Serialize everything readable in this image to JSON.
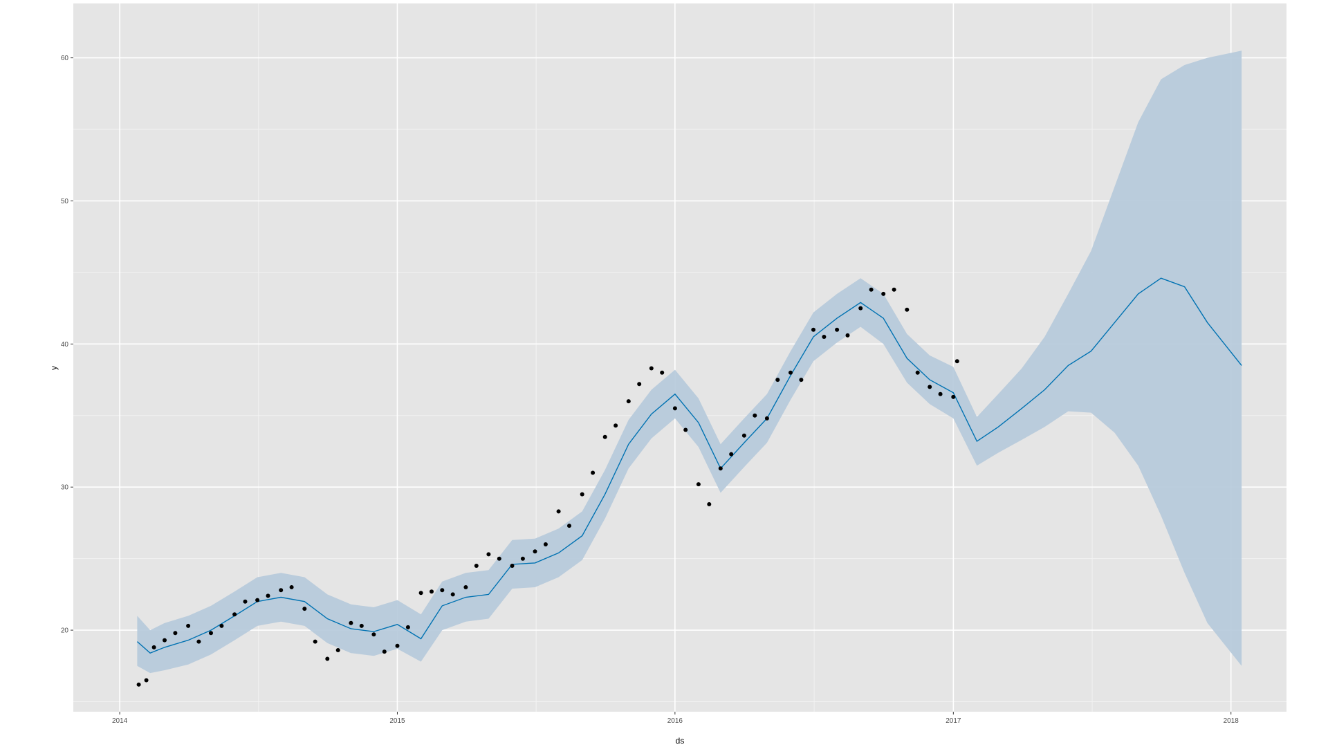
{
  "chart_data": {
    "type": "line",
    "title": "",
    "xlabel": "ds",
    "ylabel": "y",
    "x_is_date": true,
    "xlim": [
      "2013-11-01",
      "2018-03-15"
    ],
    "ylim": [
      14.3,
      63.8
    ],
    "x_ticks": [
      {
        "value": "2014-01-01",
        "label": "2014"
      },
      {
        "value": "2015-01-01",
        "label": "2015"
      },
      {
        "value": "2016-01-01",
        "label": "2016"
      },
      {
        "value": "2017-01-01",
        "label": "2017"
      },
      {
        "value": "2018-01-01",
        "label": "2018"
      }
    ],
    "y_ticks": [
      20,
      30,
      40,
      50,
      60
    ],
    "grid": true,
    "legend": "none",
    "colors": {
      "panel_background": "#e5e5e5",
      "grid_major": "#ffffff",
      "grid_minor": "#f2f2f2",
      "forecast_line": "#0072b2",
      "uncertainty_band": "#b5c9da",
      "points": "#000000"
    },
    "series": [
      {
        "type": "line",
        "x": [
          "2014-01-24",
          "2014-02-10",
          "2014-03-01",
          "2014-04-01",
          "2014-05-01",
          "2014-06-01",
          "2014-07-01",
          "2014-08-01",
          "2014-09-01",
          "2014-10-01",
          "2014-11-01",
          "2014-12-01",
          "2015-01-01",
          "2015-02-01",
          "2015-03-01",
          "2015-04-01",
          "2015-05-01",
          "2015-06-01",
          "2015-07-01",
          "2015-08-01",
          "2015-09-01",
          "2015-10-01",
          "2015-11-01",
          "2015-12-01",
          "2016-01-01",
          "2016-02-01",
          "2016-03-01",
          "2016-04-01",
          "2016-05-01",
          "2016-06-01",
          "2016-07-01",
          "2016-08-01",
          "2016-09-01",
          "2016-10-01",
          "2016-11-01",
          "2016-12-01",
          "2017-01-01",
          "2017-02-01",
          "2017-03-01",
          "2017-04-01",
          "2017-05-01",
          "2017-06-01",
          "2017-07-01",
          "2017-08-01",
          "2017-09-01",
          "2017-10-01",
          "2017-11-01",
          "2017-12-01",
          "2018-01-15"
        ],
        "y": [
          19.2,
          18.4,
          18.8,
          19.3,
          20.0,
          21.0,
          22.0,
          22.3,
          22.0,
          20.8,
          20.1,
          19.9,
          20.4,
          19.4,
          21.7,
          22.3,
          22.5,
          24.6,
          24.7,
          25.4,
          26.6,
          29.5,
          33.0,
          35.1,
          36.5,
          34.5,
          31.3,
          33.1,
          34.8,
          37.8,
          40.5,
          41.8,
          42.9,
          41.8,
          39.0,
          37.5,
          36.6,
          33.2,
          34.2,
          35.5,
          36.8,
          38.5,
          39.5,
          41.5,
          43.5,
          44.6,
          44.0,
          41.5,
          38.5
        ]
      },
      {
        "type": "band",
        "x": [
          "2014-01-24",
          "2014-02-10",
          "2014-03-01",
          "2014-04-01",
          "2014-05-01",
          "2014-06-01",
          "2014-07-01",
          "2014-08-01",
          "2014-09-01",
          "2014-10-01",
          "2014-11-01",
          "2014-12-01",
          "2015-01-01",
          "2015-02-01",
          "2015-03-01",
          "2015-04-01",
          "2015-05-01",
          "2015-06-01",
          "2015-07-01",
          "2015-08-01",
          "2015-09-01",
          "2015-10-01",
          "2015-11-01",
          "2015-12-01",
          "2016-01-01",
          "2016-02-01",
          "2016-03-01",
          "2016-04-01",
          "2016-05-01",
          "2016-06-01",
          "2016-07-01",
          "2016-08-01",
          "2016-09-01",
          "2016-10-01",
          "2016-11-01",
          "2016-12-01",
          "2017-01-01",
          "2017-02-01",
          "2017-03-01",
          "2017-04-01",
          "2017-05-01",
          "2017-06-01",
          "2017-07-01",
          "2017-08-01",
          "2017-09-01",
          "2017-10-01",
          "2017-11-01",
          "2017-12-01",
          "2018-01-15"
        ],
        "lower": [
          17.5,
          17.0,
          17.2,
          17.6,
          18.3,
          19.3,
          20.3,
          20.6,
          20.3,
          19.1,
          18.4,
          18.2,
          18.7,
          17.8,
          20.0,
          20.6,
          20.8,
          22.9,
          23.0,
          23.7,
          24.9,
          27.8,
          31.3,
          33.4,
          34.8,
          32.8,
          29.6,
          31.4,
          33.1,
          36.1,
          38.8,
          40.1,
          41.2,
          40.0,
          37.3,
          35.8,
          34.8,
          31.5,
          32.4,
          33.3,
          34.2,
          35.3,
          35.2,
          33.8,
          31.5,
          28.0,
          24.0,
          20.5,
          17.5
        ],
        "upper": [
          21.0,
          20.0,
          20.5,
          21.0,
          21.7,
          22.7,
          23.7,
          24.0,
          23.7,
          22.5,
          21.8,
          21.6,
          22.1,
          21.1,
          23.4,
          24.0,
          24.2,
          26.3,
          26.4,
          27.1,
          28.3,
          31.2,
          34.7,
          36.8,
          38.2,
          36.2,
          33.0,
          34.8,
          36.5,
          39.5,
          42.2,
          43.5,
          44.6,
          43.5,
          40.7,
          39.2,
          38.4,
          34.9,
          36.5,
          38.3,
          40.5,
          43.5,
          46.5,
          51.0,
          55.5,
          58.5,
          59.5,
          60.0,
          60.5
        ]
      },
      {
        "type": "scatter",
        "x": [
          "2014-01-26",
          "2014-02-05",
          "2014-02-15",
          "2014-03-01",
          "2014-03-15",
          "2014-04-01",
          "2014-04-15",
          "2014-05-01",
          "2014-05-15",
          "2014-06-01",
          "2014-06-15",
          "2014-07-01",
          "2014-07-15",
          "2014-08-01",
          "2014-08-15",
          "2014-09-01",
          "2014-09-15",
          "2014-10-01",
          "2014-10-15",
          "2014-11-01",
          "2014-11-15",
          "2014-12-01",
          "2014-12-15",
          "2015-01-01",
          "2015-01-15",
          "2015-02-01",
          "2015-02-15",
          "2015-03-01",
          "2015-03-15",
          "2015-04-01",
          "2015-04-15",
          "2015-05-01",
          "2015-05-15",
          "2015-06-01",
          "2015-06-15",
          "2015-07-01",
          "2015-07-15",
          "2015-08-01",
          "2015-08-15",
          "2015-09-01",
          "2015-09-15",
          "2015-10-01",
          "2015-10-15",
          "2015-11-01",
          "2015-11-15",
          "2015-12-01",
          "2015-12-15",
          "2016-01-01",
          "2016-01-15",
          "2016-02-01",
          "2016-02-15",
          "2016-03-01",
          "2016-03-15",
          "2016-04-01",
          "2016-04-15",
          "2016-05-01",
          "2016-05-15",
          "2016-06-01",
          "2016-06-15",
          "2016-07-01",
          "2016-07-15",
          "2016-08-01",
          "2016-08-15",
          "2016-09-01",
          "2016-09-15",
          "2016-10-01",
          "2016-10-15",
          "2016-11-01",
          "2016-11-15",
          "2016-12-01",
          "2016-12-15",
          "2017-01-01",
          "2017-01-06"
        ],
        "y": [
          16.2,
          16.5,
          18.8,
          19.3,
          19.8,
          20.3,
          19.2,
          19.8,
          20.3,
          21.1,
          22.0,
          22.1,
          22.4,
          22.8,
          23.0,
          21.5,
          19.2,
          18.0,
          18.6,
          20.5,
          20.3,
          19.7,
          18.5,
          18.9,
          20.2,
          22.6,
          22.7,
          22.8,
          22.5,
          23.0,
          24.5,
          25.3,
          25.0,
          24.5,
          25.0,
          25.5,
          26.0,
          28.3,
          27.3,
          29.5,
          31.0,
          33.5,
          34.3,
          36.0,
          37.2,
          38.3,
          38.0,
          35.5,
          34.0,
          30.2,
          28.8,
          31.3,
          32.3,
          33.6,
          35.0,
          34.8,
          37.5,
          38.0,
          37.5,
          41.0,
          40.5,
          41.0,
          40.6,
          42.5,
          43.8,
          43.5,
          43.8,
          42.4,
          38.0,
          37.0,
          36.5,
          36.3,
          38.8
        ]
      }
    ]
  }
}
